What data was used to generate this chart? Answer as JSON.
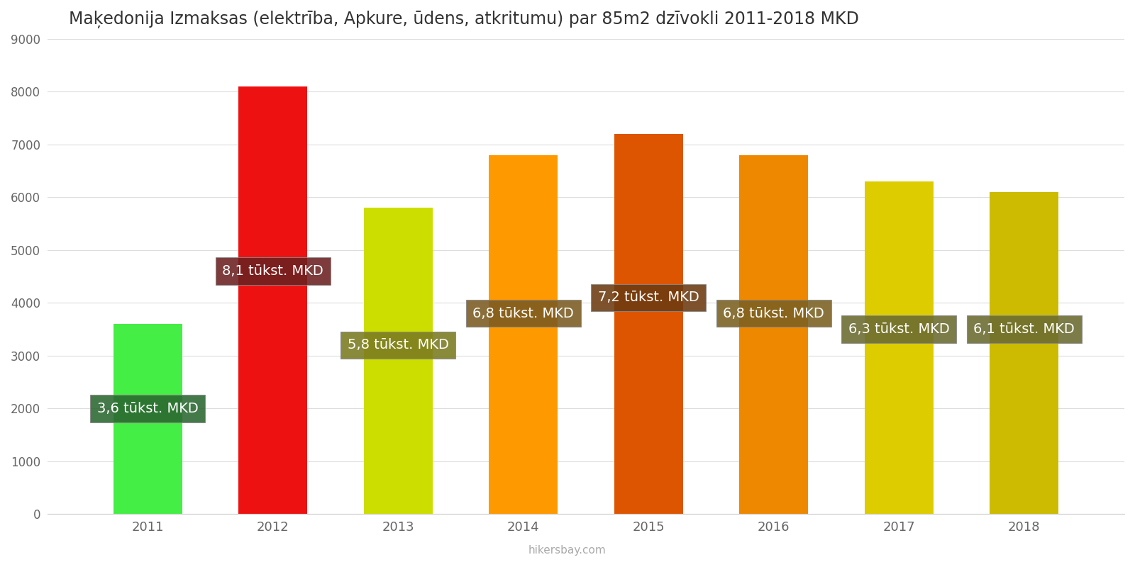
{
  "title": "Maķedonija Izmaksas (elektrība, Apkure, ūdens, atkritumu) par 85m2 dzīvokli 2011-2018 MKD",
  "years": [
    2011,
    2012,
    2013,
    2014,
    2015,
    2016,
    2017,
    2018
  ],
  "values": [
    3600,
    8100,
    5800,
    6800,
    7200,
    6800,
    6300,
    6100
  ],
  "bar_colors": [
    "#44ee44",
    "#ee1111",
    "#ccdd00",
    "#ff9900",
    "#dd5500",
    "#ee8800",
    "#ddcc00",
    "#ccbb00"
  ],
  "label_box_colors": [
    "#2a6630",
    "#6b2020",
    "#7a7a20",
    "#7a5a20",
    "#6b3a10",
    "#7a6020",
    "#6a6a30",
    "#6a6a30"
  ],
  "labels": [
    "3,6 tūkst. MKD",
    "8,1 tūkst. MKD",
    "5,8 tūkst. MKD",
    "6,8 tūkst. MKD",
    "7,2 tūkst. MKD",
    "6,8 tūkst. MKD",
    "6,3 tūkst. MKD",
    "6,1 tūkst. MKD"
  ],
  "label_y_positions": [
    2000,
    4600,
    3200,
    3800,
    4100,
    3800,
    3500,
    3500
  ],
  "ylim": [
    0,
    9000
  ],
  "yticks": [
    0,
    1000,
    2000,
    3000,
    4000,
    5000,
    6000,
    7000,
    8000,
    9000
  ],
  "background_color": "#ffffff",
  "watermark": "hikersbay.com",
  "title_fontsize": 17,
  "label_text_color": "#ffffff",
  "label_fontsize": 14
}
